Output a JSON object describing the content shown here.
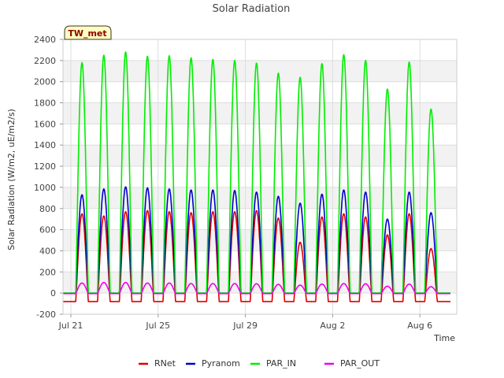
{
  "chart_data": {
    "type": "line",
    "title": "Solar Radiation",
    "xlabel": "Time",
    "ylabel": "Solar Radiation (W/m2, uE/m2/s)",
    "ylim": [
      -200,
      2400
    ],
    "yticks": [
      -200,
      0,
      200,
      400,
      600,
      800,
      1000,
      1200,
      1400,
      1600,
      1800,
      2000,
      2200,
      2400
    ],
    "xlim": [
      0,
      18
    ],
    "xticks": [
      {
        "x": 0,
        "label": "Jul 21"
      },
      {
        "x": 4,
        "label": "Jul 25"
      },
      {
        "x": 8,
        "label": "Jul 29"
      },
      {
        "x": 12,
        "label": "Aug 2"
      },
      {
        "x": 16,
        "label": "Aug 6"
      }
    ],
    "x_unit": "days since Jul 21",
    "days": [
      "Jul 21",
      "Jul 22",
      "Jul 23",
      "Jul 24",
      "Jul 25",
      "Jul 26",
      "Jul 27",
      "Jul 28",
      "Jul 29",
      "Jul 30",
      "Jul 31",
      "Aug 1",
      "Aug 2",
      "Aug 3",
      "Aug 4",
      "Aug 5",
      "Aug 6",
      "Aug 7"
    ],
    "grid": true,
    "legend_position": "bottom",
    "site_label": "TW_met",
    "series": [
      {
        "name": "RNet",
        "color": "#dd0000",
        "night_value": -80,
        "daily_peak": [
          750,
          730,
          770,
          780,
          770,
          760,
          770,
          770,
          780,
          710,
          480,
          720,
          750,
          720,
          550,
          750,
          420,
          0
        ]
      },
      {
        "name": "Pyranom",
        "color": "#0000cc",
        "night_value": 0,
        "daily_peak": [
          930,
          985,
          1005,
          995,
          985,
          975,
          975,
          970,
          955,
          915,
          850,
          935,
          975,
          955,
          700,
          955,
          760,
          0
        ]
      },
      {
        "name": "PAR_IN",
        "color": "#00ee00",
        "night_value": 0,
        "daily_peak": [
          2180,
          2250,
          2280,
          2240,
          2245,
          2225,
          2210,
          2200,
          2175,
          2080,
          2040,
          2170,
          2255,
          2200,
          1930,
          2185,
          1740,
          0
        ]
      },
      {
        "name": "PAR_OUT",
        "color": "#ee00ee",
        "night_value": -5,
        "daily_peak": [
          95,
          100,
          100,
          95,
          95,
          90,
          90,
          90,
          88,
          82,
          75,
          85,
          90,
          88,
          65,
          85,
          60,
          0
        ]
      }
    ]
  }
}
